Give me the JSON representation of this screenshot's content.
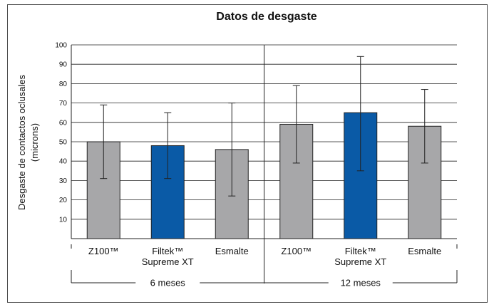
{
  "chart_data": {
    "type": "bar",
    "title": "Datos de desgaste",
    "ylabel": "Desgaste de contactos oclusales",
    "ylabel_unit": "(microns)",
    "ylim": [
      0,
      100
    ],
    "yticks": [
      10,
      20,
      30,
      40,
      50,
      60,
      70,
      80,
      90,
      100
    ],
    "grid": true,
    "groups": [
      {
        "name": "6 meses",
        "bars": [
          {
            "category": "Z100™",
            "category_lines": [
              "Z100™"
            ],
            "value": 50,
            "err_low": 31,
            "err_high": 69,
            "color": "#a7a7a9"
          },
          {
            "category": "Filtek™ Supreme XT",
            "category_lines": [
              "Filtek™",
              "Supreme XT"
            ],
            "value": 48,
            "err_low": 31,
            "err_high": 65,
            "color": "#0a5aa6"
          },
          {
            "category": "Esmalte",
            "category_lines": [
              "Esmalte"
            ],
            "value": 46,
            "err_low": 22,
            "err_high": 70,
            "color": "#a7a7a9"
          }
        ]
      },
      {
        "name": "12 meses",
        "bars": [
          {
            "category": "Z100™",
            "category_lines": [
              "Z100™"
            ],
            "value": 59,
            "err_low": 39,
            "err_high": 79,
            "color": "#a7a7a9"
          },
          {
            "category": "Filtek™ Supreme XT",
            "category_lines": [
              "Filtek™",
              "Supreme XT"
            ],
            "value": 65,
            "err_low": 35,
            "err_high": 94,
            "color": "#0a5aa6"
          },
          {
            "category": "Esmalte",
            "category_lines": [
              "Esmalte"
            ],
            "value": 58,
            "err_low": 39,
            "err_high": 77,
            "color": "#a7a7a9"
          }
        ]
      }
    ]
  }
}
